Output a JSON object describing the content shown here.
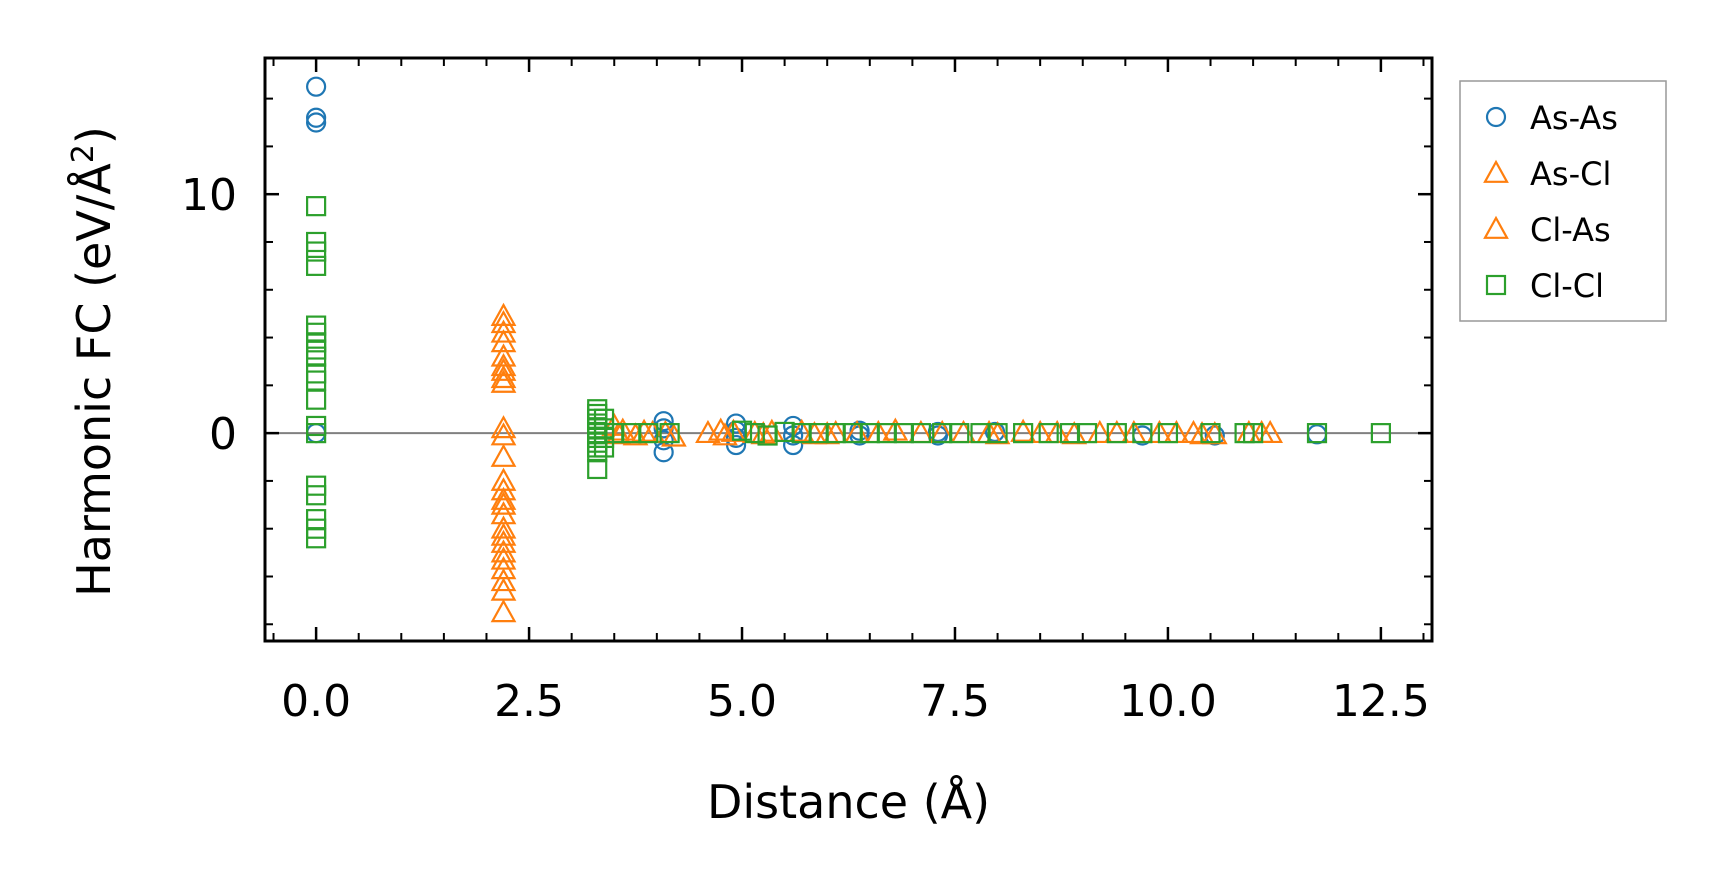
{
  "chart_data": {
    "type": "scatter",
    "xlabel": "Distance (Å)",
    "ylabel_main": "Harmonic FC (eV/Å",
    "ylabel_sup": "2",
    "ylabel_end": ")",
    "xlim": [
      -0.6,
      13.1
    ],
    "ylim": [
      -8.7,
      15.7
    ],
    "xticks": [
      0.0,
      2.5,
      5.0,
      7.5,
      10.0,
      12.5
    ],
    "xtick_labels": [
      "0.0",
      "2.5",
      "5.0",
      "7.5",
      "10.0",
      "12.5"
    ],
    "yticks": [
      0,
      10
    ],
    "ytick_labels": [
      "0",
      "10"
    ],
    "zero_line": 0,
    "legend_position": "outside-right",
    "series": [
      {
        "name": "As-As",
        "marker": "circle",
        "color": "#1f77b4",
        "points": [
          [
            0,
            14.5
          ],
          [
            0,
            13.2
          ],
          [
            0,
            13.0
          ],
          [
            0,
            0.0
          ],
          [
            4.08,
            0.5
          ],
          [
            4.08,
            0.2
          ],
          [
            4.08,
            -0.3
          ],
          [
            4.08,
            -0.8
          ],
          [
            4.93,
            0.4
          ],
          [
            4.93,
            0.1
          ],
          [
            4.93,
            -0.2
          ],
          [
            4.93,
            -0.5
          ],
          [
            5.6,
            0.3
          ],
          [
            5.6,
            -0.1
          ],
          [
            5.6,
            -0.5
          ],
          [
            6.38,
            0.1
          ],
          [
            6.38,
            -0.1
          ],
          [
            7.3,
            0.05
          ],
          [
            7.3,
            -0.1
          ],
          [
            7.97,
            0.05
          ],
          [
            9.7,
            -0.1
          ],
          [
            10.55,
            -0.1
          ],
          [
            11.75,
            -0.05
          ]
        ]
      },
      {
        "name": "As-Cl",
        "marker": "triangle",
        "color": "#ff7f0e",
        "points": [
          [
            2.2,
            4.9
          ],
          [
            2.2,
            4.6
          ],
          [
            2.2,
            4.2
          ],
          [
            2.2,
            3.8
          ],
          [
            2.2,
            3.2
          ],
          [
            2.2,
            2.8
          ],
          [
            2.2,
            2.6
          ],
          [
            2.2,
            2.3
          ],
          [
            2.2,
            2.1
          ],
          [
            2.2,
            0.2
          ],
          [
            2.2,
            -0.1
          ],
          [
            2.2,
            -1.0
          ],
          [
            2.2,
            -2.0
          ],
          [
            2.2,
            -2.4
          ],
          [
            2.2,
            -2.8
          ],
          [
            2.2,
            -3.0
          ],
          [
            2.2,
            -3.4
          ],
          [
            2.2,
            -4.0
          ],
          [
            2.2,
            -4.3
          ],
          [
            2.2,
            -4.6
          ],
          [
            2.2,
            -5.0
          ],
          [
            2.2,
            -5.3
          ],
          [
            2.2,
            -5.7
          ],
          [
            2.2,
            -6.2
          ],
          [
            2.2,
            -6.6
          ],
          [
            2.2,
            -7.5
          ],
          [
            3.5,
            0.3
          ],
          [
            3.6,
            0.1
          ],
          [
            3.75,
            -0.1
          ],
          [
            3.95,
            0.0
          ],
          [
            4.2,
            -0.15
          ],
          [
            4.75,
            0.1
          ],
          [
            4.8,
            -0.1
          ],
          [
            5.15,
            0.0
          ],
          [
            5.35,
            0.05
          ],
          [
            5.85,
            -0.05
          ],
          [
            6.1,
            0.0
          ],
          [
            6.35,
            0.0
          ],
          [
            6.8,
            0.1
          ],
          [
            7.1,
            0.0
          ],
          [
            7.9,
            0.0
          ],
          [
            8.3,
            0.05
          ],
          [
            8.7,
            0.0
          ],
          [
            9.2,
            0.0
          ],
          [
            9.6,
            0.0
          ],
          [
            10.1,
            0.0
          ],
          [
            10.3,
            0.0
          ],
          [
            10.55,
            -0.05
          ],
          [
            11.1,
            0.0
          ],
          [
            11.2,
            0.0
          ]
        ]
      },
      {
        "name": "Cl-As",
        "marker": "triangle",
        "color": "#ff7f0e",
        "points": [
          [
            3.55,
            -0.05
          ],
          [
            3.85,
            0.05
          ],
          [
            4.1,
            0.0
          ],
          [
            4.6,
            0.0
          ],
          [
            4.9,
            0.05
          ],
          [
            5.25,
            -0.05
          ],
          [
            5.7,
            0.05
          ],
          [
            6.0,
            -0.05
          ],
          [
            6.6,
            0.0
          ],
          [
            7.35,
            0.0
          ],
          [
            7.6,
            0.0
          ],
          [
            8.0,
            -0.05
          ],
          [
            8.5,
            0.0
          ],
          [
            8.9,
            -0.05
          ],
          [
            9.4,
            0.0
          ],
          [
            9.9,
            0.0
          ],
          [
            10.4,
            -0.05
          ],
          [
            10.95,
            0.0
          ]
        ]
      },
      {
        "name": "Cl-Cl",
        "marker": "square",
        "color": "#2ca02c",
        "points": [
          [
            0,
            9.5
          ],
          [
            0,
            8.0
          ],
          [
            0,
            7.6
          ],
          [
            0,
            7.0
          ],
          [
            0,
            4.5
          ],
          [
            0,
            4.2
          ],
          [
            0,
            3.8
          ],
          [
            0,
            3.5
          ],
          [
            0,
            3.2
          ],
          [
            0,
            2.5
          ],
          [
            0,
            2.2
          ],
          [
            0,
            1.4
          ],
          [
            0,
            0.3
          ],
          [
            0,
            0.0
          ],
          [
            0,
            -2.2
          ],
          [
            0,
            -2.6
          ],
          [
            0,
            -3.6
          ],
          [
            0,
            -4.0
          ],
          [
            0,
            -4.4
          ],
          [
            3.3,
            1.0
          ],
          [
            3.3,
            0.8
          ],
          [
            3.3,
            0.6
          ],
          [
            3.3,
            0.4
          ],
          [
            3.3,
            0.2
          ],
          [
            3.3,
            0.0
          ],
          [
            3.3,
            -0.2
          ],
          [
            3.3,
            -0.4
          ],
          [
            3.3,
            -0.6
          ],
          [
            3.3,
            -0.8
          ],
          [
            3.3,
            -1.5
          ],
          [
            3.38,
            0.6
          ],
          [
            3.38,
            0.2
          ],
          [
            3.38,
            -0.2
          ],
          [
            3.38,
            -0.6
          ],
          [
            3.5,
            0.0
          ],
          [
            3.7,
            0.0
          ],
          [
            3.9,
            0.0
          ],
          [
            4.15,
            0.0
          ],
          [
            5.0,
            0.1
          ],
          [
            5.15,
            0.0
          ],
          [
            5.3,
            -0.1
          ],
          [
            5.5,
            0.05
          ],
          [
            5.7,
            0.0
          ],
          [
            5.9,
            0.0
          ],
          [
            6.1,
            0.0
          ],
          [
            6.3,
            0.0
          ],
          [
            6.5,
            0.0
          ],
          [
            6.7,
            0.0
          ],
          [
            6.9,
            0.0
          ],
          [
            7.1,
            0.0
          ],
          [
            7.35,
            0.0
          ],
          [
            7.55,
            0.0
          ],
          [
            7.8,
            0.0
          ],
          [
            8.0,
            0.0
          ],
          [
            8.3,
            0.0
          ],
          [
            8.6,
            0.0
          ],
          [
            8.85,
            0.0
          ],
          [
            9.05,
            0.0
          ],
          [
            9.4,
            0.0
          ],
          [
            9.7,
            0.0
          ],
          [
            10.0,
            0.0
          ],
          [
            10.5,
            0.0
          ],
          [
            10.9,
            0.0
          ],
          [
            11.0,
            0.0
          ],
          [
            11.75,
            0.0
          ],
          [
            12.5,
            0.0
          ]
        ]
      }
    ]
  }
}
